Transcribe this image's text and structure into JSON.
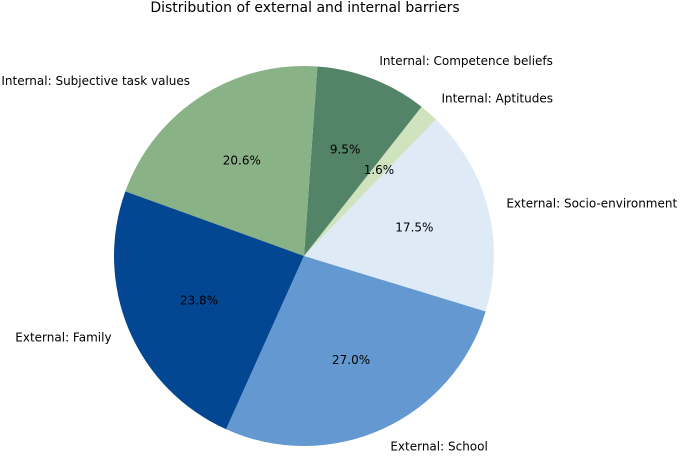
{
  "chart_data": {
    "type": "pie",
    "title": "Distribution of external and internal barriers",
    "slices": [
      {
        "label": "External: Socio-environment",
        "value": 17.5,
        "pct_label": "17.5%",
        "color": "#deebf7"
      },
      {
        "label": "Internal: Aptitudes",
        "value": 1.6,
        "pct_label": "1.6%",
        "color": "#cfe3bf"
      },
      {
        "label": "Internal: Competence beliefs",
        "value": 9.5,
        "pct_label": "9.5%",
        "color": "#548468"
      },
      {
        "label": "Internal: Subjective task values",
        "value": 20.6,
        "pct_label": "20.6%",
        "color": "#8ab287"
      },
      {
        "label": "External: Family",
        "value": 23.8,
        "pct_label": "23.8%",
        "color": "#034793"
      },
      {
        "label": "External: School",
        "value": 27.0,
        "pct_label": "27.0%",
        "color": "#6398d1"
      }
    ],
    "start_angle_deg": -17,
    "direction": "counterclockwise",
    "edge_color": "#ffffff"
  }
}
